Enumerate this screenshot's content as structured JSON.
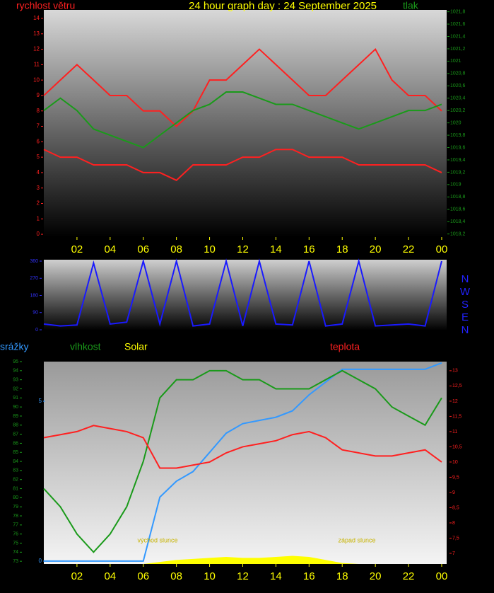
{
  "chart_data": [
    {
      "type": "line",
      "title": "24 hour graph day : 24 September 2025",
      "x": [
        0,
        1,
        2,
        3,
        4,
        5,
        6,
        7,
        8,
        9,
        10,
        11,
        12,
        13,
        14,
        15,
        16,
        17,
        18,
        19,
        20,
        21,
        22,
        23,
        24
      ],
      "xlim": [
        0,
        24.3
      ],
      "xticks": [
        {
          "value": 2,
          "label": "02"
        },
        {
          "value": 4,
          "label": "04"
        },
        {
          "value": 6,
          "label": "06"
        },
        {
          "value": 8,
          "label": "08"
        },
        10,
        12,
        14,
        16,
        18,
        20,
        22,
        {
          "value": 24,
          "label": "00"
        }
      ],
      "ylim": [
        -0.18,
        14.55
      ],
      "yticks": [
        0,
        1,
        2,
        3,
        4,
        5,
        6,
        7,
        8,
        9,
        10,
        11,
        12,
        13,
        14
      ],
      "y2lim": [
        1018.15,
        1021.83
      ],
      "y2ticks": [
        {
          "value": 1018.2,
          "label": "1018,2"
        },
        {
          "value": 1018.4,
          "label": "1018,4"
        },
        {
          "value": 1018.6,
          "label": "1018,6"
        },
        {
          "value": 1018.8,
          "label": "1018,8"
        },
        1019,
        {
          "value": 1019.2,
          "label": "1019,2"
        },
        {
          "value": 1019.4,
          "label": "1019,4"
        },
        {
          "value": 1019.6,
          "label": "1019,6"
        },
        {
          "value": 1019.8,
          "label": "1019,8"
        },
        1020,
        {
          "value": 1020.2,
          "label": "1020,2"
        },
        {
          "value": 1020.4,
          "label": "1020,4"
        },
        {
          "value": 1020.6,
          "label": "1020,6"
        },
        {
          "value": 1020.8,
          "label": "1020,8"
        },
        1021,
        {
          "value": 1021.2,
          "label": "1021,2"
        },
        {
          "value": 1021.4,
          "label": "1021,4"
        },
        {
          "value": 1021.6,
          "label": "1021,6"
        },
        {
          "value": 1021.8,
          "label": "1021,8"
        }
      ],
      "series": [
        {
          "name": "rychlost větru",
          "color": "#ff2020",
          "values": [
            9,
            10,
            11,
            10,
            9,
            9,
            8,
            8,
            7,
            8,
            10,
            10,
            11,
            12,
            11,
            10,
            9,
            9,
            10,
            11,
            12,
            10,
            9,
            9,
            8
          ]
        },
        {
          "color": "#ff2020",
          "values": [
            5.5,
            5,
            5,
            4.5,
            4.5,
            4.5,
            4,
            4,
            3.5,
            4.5,
            4.5,
            4.5,
            5,
            5,
            5.5,
            5.5,
            5,
            5,
            5,
            4.5,
            4.5,
            4.5,
            4.5,
            4.5,
            4
          ]
        },
        {
          "name": "tlak",
          "color": "#1a9a1a",
          "axis": "y2",
          "values": [
            1020.2,
            1020.4,
            1020.2,
            1019.9,
            1019.8,
            1019.7,
            1019.6,
            1019.8,
            1020.0,
            1020.2,
            1020.3,
            1020.5,
            1020.5,
            1020.4,
            1020.3,
            1020.3,
            1020.2,
            1020.1,
            1020.0,
            1019.9,
            1020.0,
            1020.1,
            1020.2,
            1020.2,
            1020.3
          ]
        }
      ]
    },
    {
      "type": "line",
      "x": [
        0,
        1,
        2,
        3,
        4,
        5,
        6,
        7,
        8,
        9,
        10,
        11,
        12,
        13,
        14,
        15,
        16,
        17,
        18,
        19,
        20,
        21,
        22,
        23,
        24
      ],
      "xlim": [
        0,
        24.3
      ],
      "ylim": [
        -3.7,
        367.4
      ],
      "yticks": [
        0,
        90,
        180,
        270,
        360
      ],
      "compass": [
        "N",
        "W",
        "S",
        "E",
        "N"
      ],
      "series": [
        {
          "color": "#1a1aff",
          "values": [
            30,
            20,
            25,
            350,
            30,
            40,
            360,
            30,
            360,
            20,
            30,
            360,
            20,
            360,
            30,
            25,
            360,
            20,
            30,
            360,
            20,
            25,
            30,
            20,
            360
          ]
        }
      ]
    },
    {
      "type": "line",
      "x": [
        0,
        1,
        2,
        3,
        4,
        5,
        6,
        7,
        8,
        9,
        10,
        11,
        12,
        13,
        14,
        15,
        16,
        17,
        18,
        19,
        20,
        21,
        22,
        23,
        24
      ],
      "xlim": [
        0,
        24.3
      ],
      "xticks": [
        {
          "value": 2,
          "label": "02"
        },
        {
          "value": 4,
          "label": "04"
        },
        {
          "value": 6,
          "label": "06"
        },
        {
          "value": 8,
          "label": "08"
        },
        10,
        12,
        14,
        16,
        18,
        20,
        22,
        {
          "value": 24,
          "label": "00"
        }
      ],
      "ylim": [
        72.7,
        95.0
      ],
      "yticks": [
        73,
        74,
        75,
        76,
        77,
        78,
        79,
        80,
        81,
        82,
        83,
        84,
        85,
        86,
        87,
        88,
        89,
        90,
        91,
        92,
        93,
        94,
        95
      ],
      "y2lim": [
        6.65,
        13.3
      ],
      "y2ticks": [
        7,
        {
          "value": 7.5,
          "label": "7,5"
        },
        8,
        {
          "value": 8.5,
          "label": "8,5"
        },
        9,
        {
          "value": 9.5,
          "label": "9,5"
        },
        10,
        {
          "value": 10.5,
          "label": "10,5"
        },
        11,
        {
          "value": 11.5,
          "label": "11,5"
        },
        12,
        {
          "value": 12.5,
          "label": "12,5"
        },
        13
      ],
      "y3lim": [
        -0.09,
        6.24
      ],
      "y3ticks": [
        0,
        5
      ],
      "y4lim": [
        0,
        100
      ],
      "annotations": [
        "východ slunce",
        "západ slunce"
      ],
      "series": [
        {
          "name": "srážky",
          "color": "#3399ff",
          "axis": "y3",
          "values": [
            0,
            0,
            0,
            0,
            0,
            0,
            0,
            2.0,
            2.5,
            2.8,
            3.4,
            4.0,
            4.3,
            4.4,
            4.5,
            4.7,
            5.2,
            5.6,
            6.0,
            6.0,
            6.0,
            6.0,
            6.0,
            6.0,
            6.2
          ]
        },
        {
          "name": "vlhkost",
          "color": "#1a9a1a",
          "values": [
            81,
            79,
            76,
            74,
            76,
            79,
            84,
            91,
            93,
            93,
            94,
            94,
            93,
            93,
            92,
            92,
            92,
            93,
            94,
            93,
            92,
            90,
            89,
            88,
            91
          ]
        },
        {
          "name": "Solar",
          "color": "#ffff00",
          "axis": "y4",
          "style": "area",
          "values": [
            0,
            0,
            0,
            0,
            0,
            0,
            0,
            1,
            2,
            2.5,
            3,
            3.5,
            3,
            3,
            3.5,
            4,
            3.5,
            2,
            0.5,
            0,
            0,
            0,
            0,
            0,
            0
          ]
        },
        {
          "name": "teplota",
          "color": "#ff2020",
          "axis": "y2",
          "values": [
            10.8,
            10.9,
            11.0,
            11.2,
            11.1,
            11.0,
            10.8,
            9.8,
            9.8,
            9.9,
            10.0,
            10.3,
            10.5,
            10.6,
            10.7,
            10.9,
            11.0,
            10.8,
            10.4,
            10.3,
            10.2,
            10.2,
            10.3,
            10.4,
            10.0
          ]
        }
      ]
    }
  ]
}
